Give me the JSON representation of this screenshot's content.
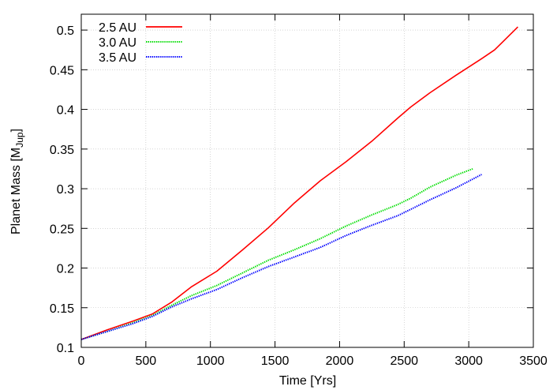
{
  "chart_data": {
    "type": "line",
    "title": "",
    "xlabel": "Time [Yrs]",
    "ylabel": "Planet Mass [M",
    "ylabel_sub": "Jup",
    "ylabel_close": "]",
    "xlim": [
      0,
      3500
    ],
    "ylim": [
      0.1,
      0.52
    ],
    "xticks": [
      0,
      500,
      1000,
      1500,
      2000,
      2500,
      3000,
      3500
    ],
    "xtick_labels": [
      "0",
      "500",
      "1000",
      "1500",
      "2000",
      "2500",
      "3000",
      "3500"
    ],
    "yticks": [
      0.1,
      0.15,
      0.2,
      0.25,
      0.3,
      0.35,
      0.4,
      0.45,
      0.5
    ],
    "ytick_labels": [
      "0.1",
      "0.15",
      "0.2",
      "0.25",
      "0.3",
      "0.35",
      "0.4",
      "0.45",
      "0.5"
    ],
    "grid": true,
    "legend_position": "top-left",
    "series": [
      {
        "name": "2.5 AU",
        "color": "#ff0000",
        "style": "solid",
        "x": [
          0,
          200,
          400,
          550,
          700,
          850,
          1050,
          1250,
          1450,
          1650,
          1850,
          2050,
          2250,
          2450,
          2550,
          2700,
          2900,
          3100,
          3200,
          3380
        ],
        "y": [
          0.11,
          0.122,
          0.133,
          0.142,
          0.157,
          0.176,
          0.196,
          0.223,
          0.251,
          0.282,
          0.31,
          0.334,
          0.36,
          0.389,
          0.403,
          0.421,
          0.443,
          0.464,
          0.475,
          0.504
        ]
      },
      {
        "name": "3.0 AU",
        "color": "#00dd00",
        "style": "dotted",
        "x": [
          0,
          200,
          400,
          550,
          700,
          850,
          1050,
          1250,
          1450,
          1650,
          1850,
          2050,
          2250,
          2450,
          2550,
          2700,
          2900,
          3030
        ],
        "y": [
          0.11,
          0.12,
          0.131,
          0.14,
          0.153,
          0.165,
          0.178,
          0.194,
          0.21,
          0.223,
          0.237,
          0.253,
          0.267,
          0.28,
          0.288,
          0.302,
          0.317,
          0.325
        ]
      },
      {
        "name": "3.5 AU",
        "color": "#0000ff",
        "style": "dotted",
        "x": [
          0,
          200,
          400,
          550,
          700,
          850,
          1050,
          1250,
          1450,
          1650,
          1850,
          2050,
          2250,
          2450,
          2550,
          2700,
          2900,
          3100
        ],
        "y": [
          0.11,
          0.12,
          0.13,
          0.139,
          0.151,
          0.161,
          0.173,
          0.188,
          0.202,
          0.214,
          0.226,
          0.241,
          0.254,
          0.266,
          0.274,
          0.286,
          0.301,
          0.318
        ]
      }
    ]
  }
}
